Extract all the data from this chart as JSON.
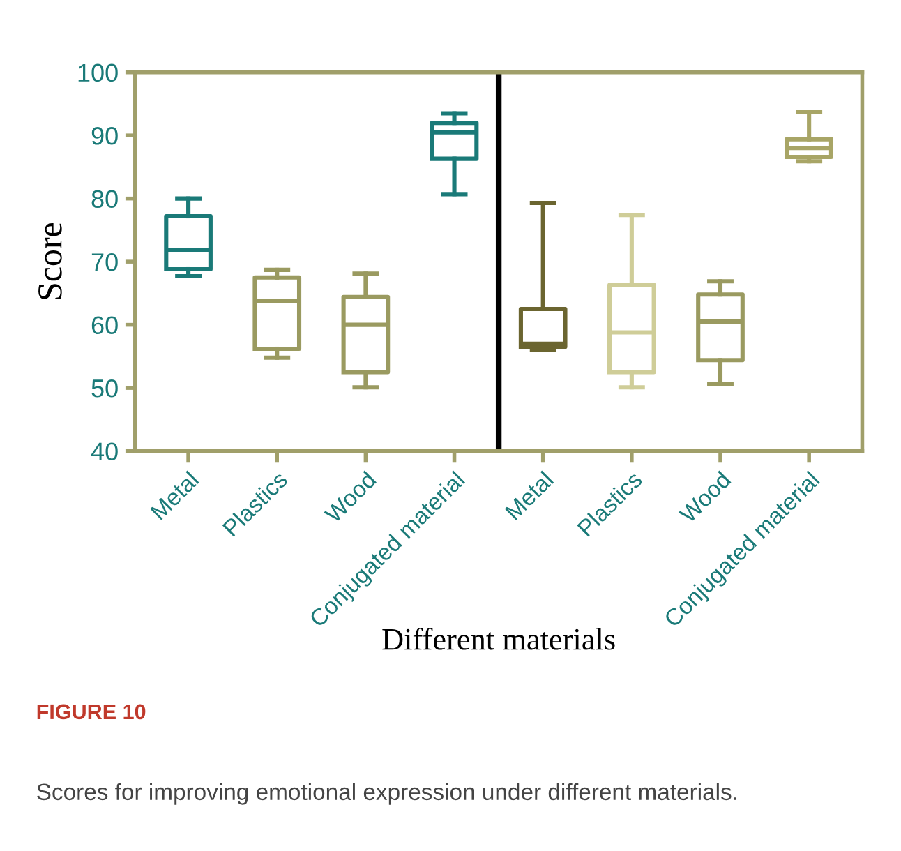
{
  "chart_data": {
    "type": "box",
    "title": "FIGURE 10",
    "subtitle": "Scores for improving emotional expression under different materials.",
    "xlabel": "Different materials",
    "ylabel": "Score",
    "categories": [
      "Metal",
      "Plastics",
      "Wood",
      "Conjugated material",
      "Metal",
      "Plastics",
      "Wood",
      "Conjugated material"
    ],
    "boxes": [
      {
        "low": 67.7,
        "q1": 68.8,
        "median": 71.9,
        "q3": 77.2,
        "high": 80
      },
      {
        "low": 54.8,
        "q1": 56.2,
        "median": 63.8,
        "q3": 67.5,
        "high": 68.7
      },
      {
        "low": 50.1,
        "q1": 52.5,
        "median": 60,
        "q3": 64.4,
        "high": 68.1
      },
      {
        "low": 80.7,
        "q1": 86.3,
        "median": 90.5,
        "q3": 92,
        "high": 93.5
      },
      {
        "low": 56,
        "q1": 56.5,
        "median": 57,
        "q3": 62.5,
        "high": 79.3
      },
      {
        "low": 50.1,
        "q1": 52.5,
        "median": 58.8,
        "q3": 66.3,
        "high": 77.4
      },
      {
        "low": 50.6,
        "q1": 54.4,
        "median": 60.5,
        "q3": 64.8,
        "high": 66.9
      },
      {
        "low": 85.9,
        "q1": 86.6,
        "median": 88,
        "q3": 89.4,
        "high": 93.7
      }
    ],
    "colors": [
      "#1a7a78",
      "#9a9a60",
      "#9a9a60",
      "#1a7a78",
      "#6b6530",
      "#cfcd98",
      "#9a9a60",
      "#a8a566"
    ],
    "ylim": [
      40,
      100
    ],
    "yticks": [
      40,
      50,
      60,
      70,
      80,
      90,
      100
    ],
    "grid": false,
    "legend": false
  }
}
